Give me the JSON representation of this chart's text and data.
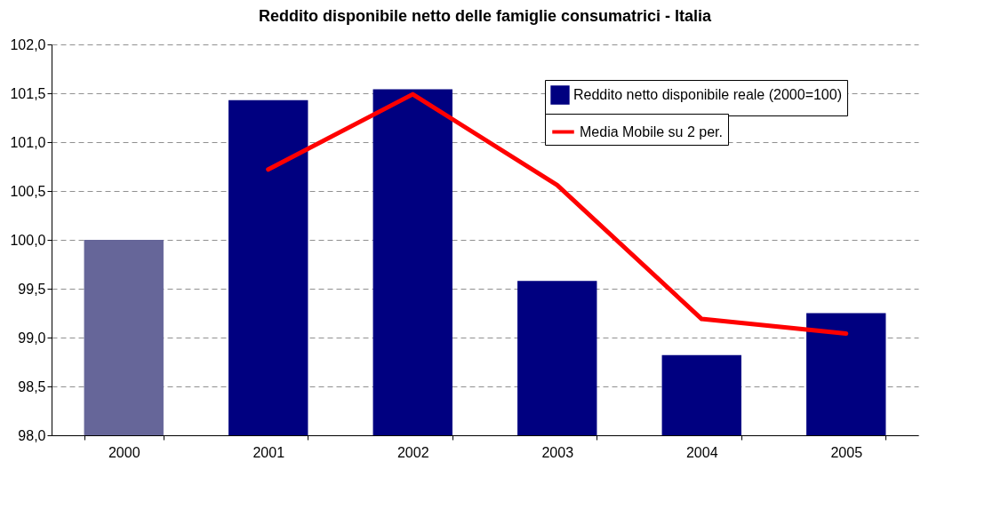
{
  "chart_data": {
    "type": "bar",
    "title": "Reddito disponibile netto delle famiglie consumatrici - Italia",
    "categories": [
      "2000",
      "2001",
      "2002",
      "2003",
      "2004",
      "2005"
    ],
    "series": [
      {
        "name": "Reddito netto disponibile reale (2000=100)",
        "color": "#000080",
        "colors": [
          "#666699",
          "#000080",
          "#000080",
          "#000080",
          "#000080",
          "#000080"
        ],
        "values": [
          100.0,
          101.43,
          101.54,
          99.58,
          98.82,
          99.25
        ]
      },
      {
        "name": "Media Mobile su 2 per.",
        "type": "line",
        "color": "#ff0000",
        "values": [
          null,
          100.72,
          101.49,
          100.56,
          99.19,
          99.04
        ]
      }
    ],
    "ylim": [
      98.0,
      102.0
    ],
    "yticks": [
      {
        "value": 98.0,
        "label": "98,0"
      },
      {
        "value": 98.5,
        "label": "98,5"
      },
      {
        "value": 99.0,
        "label": "99,0"
      },
      {
        "value": 99.5,
        "label": "99,5"
      },
      {
        "value": 100.0,
        "label": "100,0"
      },
      {
        "value": 100.5,
        "label": "100,5"
      },
      {
        "value": 101.0,
        "label": "101,0"
      },
      {
        "value": 101.5,
        "label": "101,5"
      },
      {
        "value": 102.0,
        "label": "102,0"
      }
    ],
    "grid": "y",
    "legend": "top right",
    "line_style": "solid",
    "marker": "none"
  }
}
